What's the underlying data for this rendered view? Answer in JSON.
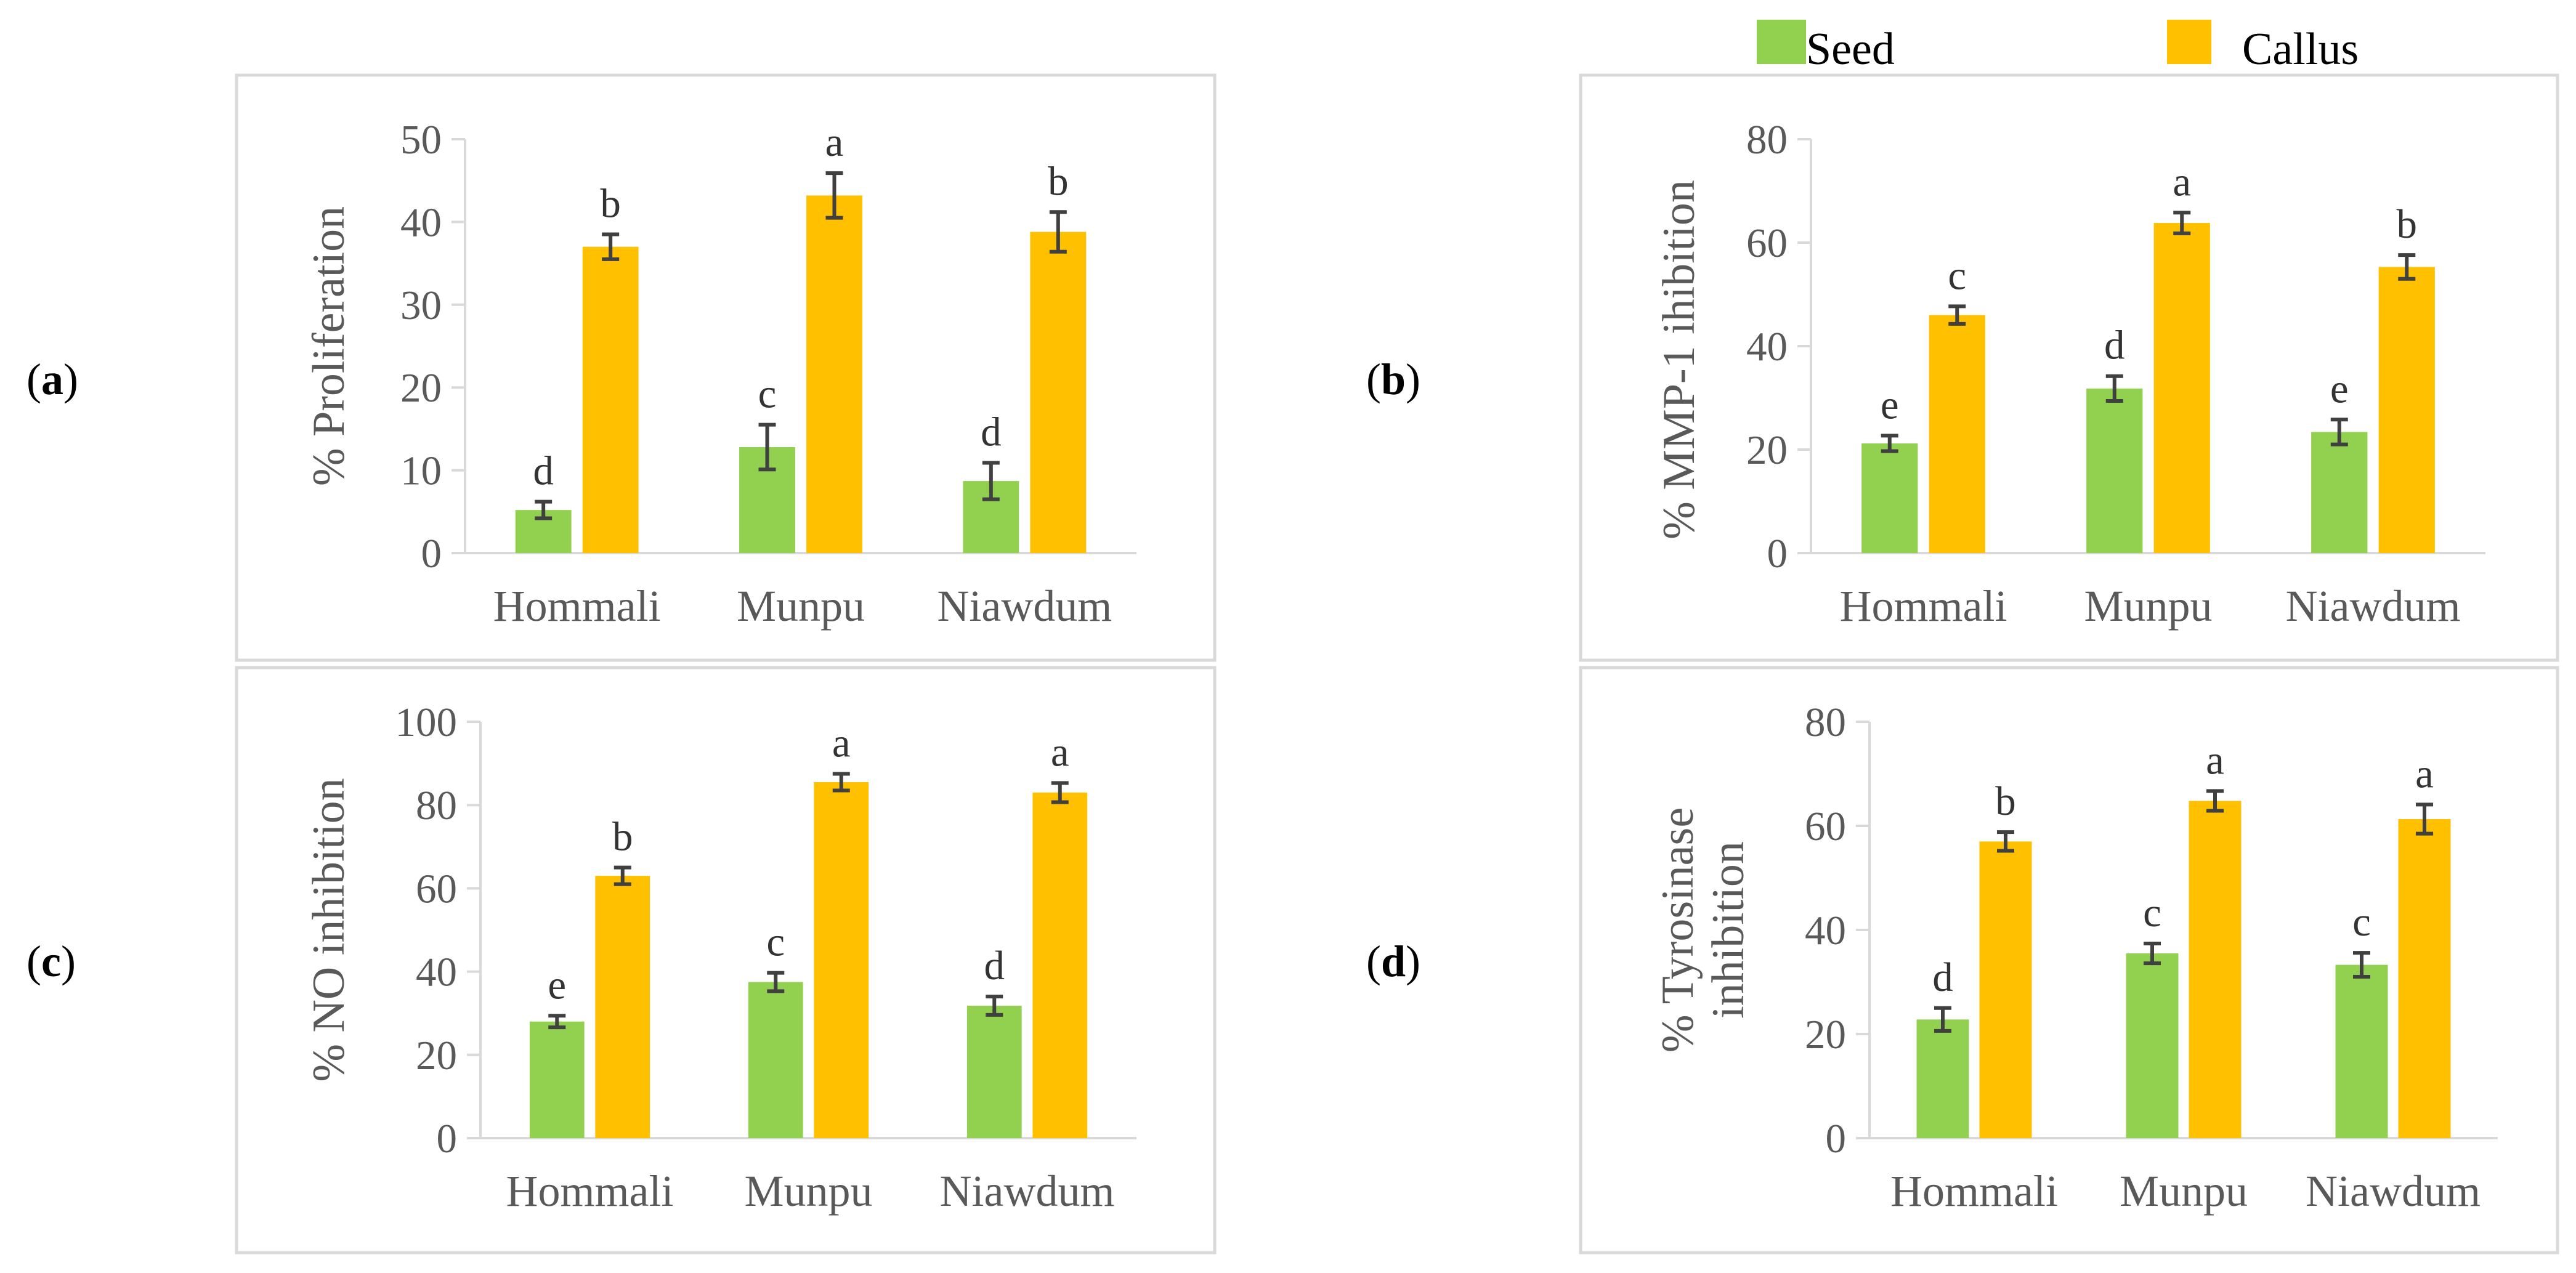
{
  "legend": [
    {
      "name": "Seed",
      "color": "#92d050"
    },
    {
      "name": "Callus",
      "color": "#ffc000"
    }
  ],
  "colors": {
    "axis": "#d9d9d9",
    "text": "#595959",
    "error": "#404040"
  },
  "chart_data": [
    {
      "type": "bar",
      "panel": "a",
      "categories": [
        "Hommali",
        "Munpu",
        "Niawdum"
      ],
      "ylabel": "% Proliferation",
      "ylim": [
        0,
        50
      ],
      "yticks": [
        0,
        10,
        20,
        30,
        40,
        50
      ],
      "series": [
        {
          "name": "Seed",
          "values": [
            5.2,
            12.8,
            8.7
          ],
          "errors": [
            1.0,
            2.7,
            2.2
          ],
          "letters": [
            "d",
            "c",
            "d"
          ]
        },
        {
          "name": "Callus",
          "values": [
            37.0,
            43.2,
            38.8
          ],
          "errors": [
            1.5,
            2.7,
            2.4
          ],
          "letters": [
            "b",
            "a",
            "b"
          ]
        }
      ]
    },
    {
      "type": "bar",
      "panel": "b",
      "categories": [
        "Hommali",
        "Munpu",
        "Niawdum"
      ],
      "ylabel": "% MMP-1  ihibition",
      "ylim": [
        0,
        80
      ],
      "yticks": [
        0,
        20,
        40,
        60,
        80
      ],
      "series": [
        {
          "name": "Seed",
          "values": [
            21.2,
            31.8,
            23.4
          ],
          "errors": [
            1.5,
            2.4,
            2.4
          ],
          "letters": [
            "e",
            "d",
            "e"
          ]
        },
        {
          "name": "Callus",
          "values": [
            46.0,
            63.8,
            55.3
          ],
          "errors": [
            1.7,
            2.0,
            2.3
          ],
          "letters": [
            "c",
            "a",
            "b"
          ]
        }
      ]
    },
    {
      "type": "bar",
      "panel": "c",
      "categories": [
        "Hommali",
        "Munpu",
        "Niawdum"
      ],
      "ylabel": "% NO inhibition",
      "ylim": [
        0,
        100
      ],
      "yticks": [
        0,
        20,
        40,
        60,
        80,
        100
      ],
      "series": [
        {
          "name": "Seed",
          "values": [
            28.0,
            37.5,
            31.8
          ],
          "errors": [
            1.4,
            2.2,
            2.2
          ],
          "letters": [
            "e",
            "c",
            "d"
          ]
        },
        {
          "name": "Callus",
          "values": [
            63.0,
            85.5,
            83.0
          ],
          "errors": [
            2.0,
            2.0,
            2.3
          ],
          "letters": [
            "b",
            "a",
            "a"
          ]
        }
      ]
    },
    {
      "type": "bar",
      "panel": "d",
      "categories": [
        "Hommali",
        "Munpu",
        "Niawdum"
      ],
      "ylabel": "% Tyrosinase inhibition",
      "ylabel_lines": [
        "% Tyrosinase",
        "inhibition"
      ],
      "ylim": [
        0,
        80
      ],
      "yticks": [
        0,
        20,
        40,
        60,
        80
      ],
      "series": [
        {
          "name": "Seed",
          "values": [
            22.8,
            35.5,
            33.3
          ],
          "errors": [
            2.2,
            1.9,
            2.3
          ],
          "letters": [
            "d",
            "c",
            "c"
          ]
        },
        {
          "name": "Callus",
          "values": [
            57.0,
            64.8,
            61.3
          ],
          "errors": [
            1.8,
            1.9,
            2.8
          ],
          "letters": [
            "b",
            "a",
            "a"
          ]
        }
      ]
    }
  ]
}
